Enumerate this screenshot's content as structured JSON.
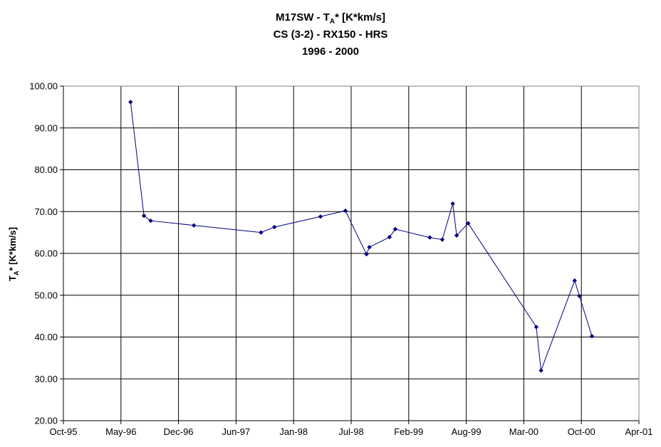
{
  "chart_data": {
    "type": "line",
    "title_lines": [
      "M17SW - T",
      "A",
      "* [K*km/s]",
      "CS (3-2) - RX150 - HRS",
      "1996 - 2000"
    ],
    "ylabel_parts": [
      "T",
      "A",
      "* [K*km/s]"
    ],
    "x_ticks": [
      "Oct-95",
      "May-96",
      "Dec-96",
      "Jun-97",
      "Jan-98",
      "Jul-98",
      "Feb-99",
      "Aug-99",
      "Mar-00",
      "Oct-00",
      "Apr-01"
    ],
    "y_ticks": [
      "20.00",
      "30.00",
      "40.00",
      "50.00",
      "60.00",
      "70.00",
      "80.00",
      "90.00",
      "100.00"
    ],
    "ylim": [
      20,
      100
    ],
    "x_tick_count": 11,
    "grid": true,
    "legend": false,
    "colors": {
      "line": "#000080",
      "marker": "#000080",
      "grid": "#000000"
    },
    "series": [
      {
        "x": [
          3.5,
          4.2,
          4.55,
          6.8,
          10.3,
          11.0,
          13.4,
          14.7,
          15.8,
          15.95,
          17.0,
          17.3,
          19.1,
          19.75,
          20.3,
          20.5,
          21.1,
          24.65,
          24.9,
          26.65,
          26.9,
          27.55
        ],
        "values": [
          96.2,
          69.0,
          67.8,
          66.7,
          65.0,
          66.3,
          68.8,
          70.2,
          59.8,
          61.5,
          63.9,
          65.8,
          63.8,
          63.3,
          71.9,
          64.3,
          67.2,
          42.4,
          32.0,
          53.5,
          49.8,
          40.2
        ]
      }
    ]
  }
}
